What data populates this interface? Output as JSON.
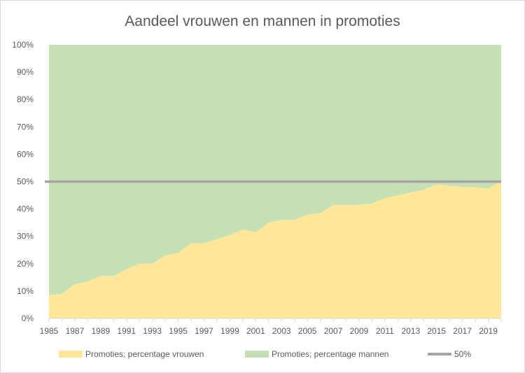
{
  "chart_data": {
    "type": "area",
    "title": "Aandeel vrouwen en mannen in promoties",
    "x": [
      1985,
      1986,
      1987,
      1988,
      1989,
      1990,
      1991,
      1992,
      1993,
      1994,
      1995,
      1996,
      1997,
      1998,
      1999,
      2000,
      2001,
      2002,
      2003,
      2004,
      2005,
      2006,
      2007,
      2008,
      2009,
      2010,
      2011,
      2012,
      2013,
      2014,
      2015,
      2016,
      2017,
      2018,
      2019,
      2020
    ],
    "x_tick_labels": [
      "1985",
      "1987",
      "1989",
      "1991",
      "1993",
      "1995",
      "1997",
      "1999",
      "2001",
      "2003",
      "2005",
      "2007",
      "2009",
      "2011",
      "2013",
      "2015",
      "2017",
      "2019"
    ],
    "y_tick_labels": [
      "0%",
      "10%",
      "20%",
      "30%",
      "40%",
      "50%",
      "60%",
      "70%",
      "80%",
      "90%",
      "100%"
    ],
    "ylim": [
      0,
      100
    ],
    "stacked": true,
    "series": [
      {
        "name": "Promoties; percentage vrouwen",
        "color": "#ffe699",
        "values": [
          8.5,
          9,
          12.5,
          13.5,
          15.5,
          15.5,
          18,
          20,
          20,
          23,
          24,
          27.5,
          27.5,
          29,
          30.5,
          32.5,
          31.5,
          35,
          36,
          36,
          38,
          38.5,
          41.5,
          41.5,
          41.5,
          42,
          44,
          45,
          46,
          47,
          49,
          48.5,
          48,
          48,
          47.5,
          50
        ]
      },
      {
        "name": "Promoties; percentage mannen",
        "color": "#c5e0b4",
        "values": [
          91.5,
          91,
          87.5,
          86.5,
          84.5,
          84.5,
          82,
          80,
          80,
          77,
          76,
          72.5,
          72.5,
          71,
          69.5,
          67.5,
          68.5,
          65,
          64,
          64,
          62,
          61.5,
          58.5,
          58.5,
          58.5,
          58,
          56,
          55,
          54,
          53,
          51,
          51.5,
          52,
          52,
          52.5,
          50
        ]
      }
    ],
    "reference_line": {
      "name": "50%",
      "value": 50,
      "color": "#a5a5a5"
    },
    "legend": {
      "position": "bottom"
    }
  }
}
